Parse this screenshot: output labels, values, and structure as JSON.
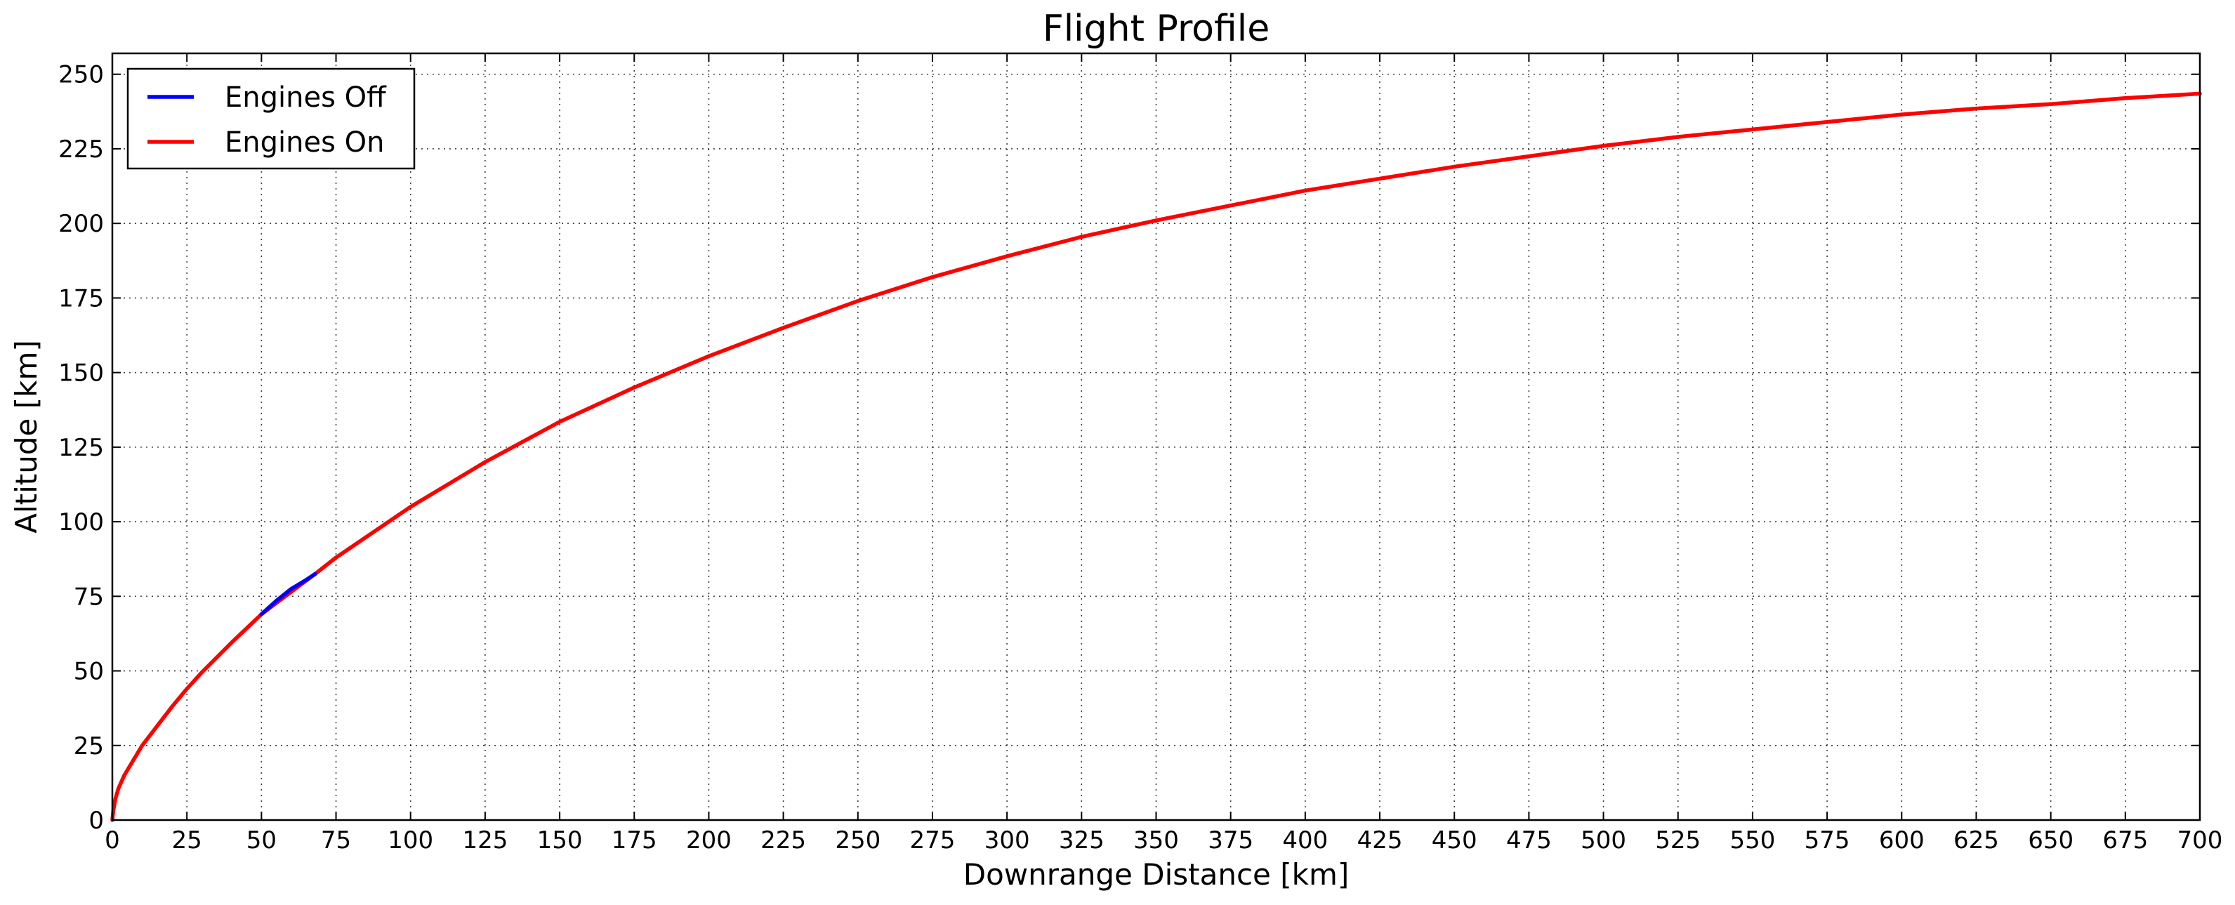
{
  "chart_data": {
    "type": "line",
    "title": "Flight Profile",
    "xlabel": "Downrange Distance [km]",
    "ylabel": "Altitude [km]",
    "xlim": [
      0,
      700
    ],
    "ylim": [
      0,
      257
    ],
    "xticks": [
      0,
      25,
      50,
      75,
      100,
      125,
      150,
      175,
      200,
      225,
      250,
      275,
      300,
      325,
      350,
      375,
      400,
      425,
      450,
      475,
      500,
      525,
      550,
      575,
      600,
      625,
      650,
      675,
      700
    ],
    "yticks": [
      0,
      25,
      50,
      75,
      100,
      125,
      150,
      175,
      200,
      225,
      250
    ],
    "grid": true,
    "legend_position": "top-left",
    "series": [
      {
        "name": "Engines Off",
        "color": "#0000ff",
        "x": [
          50,
          55,
          60,
          65,
          68
        ],
        "y": [
          69,
          73.5,
          77.5,
          80.5,
          82.5
        ]
      },
      {
        "name": "Engines On",
        "color": "#ff0000",
        "x": [
          0,
          0.3,
          1,
          2,
          4,
          7,
          10,
          15,
          20,
          25,
          30,
          40,
          50,
          68,
          75,
          100,
          125,
          150,
          175,
          200,
          225,
          250,
          275,
          300,
          325,
          350,
          375,
          400,
          425,
          450,
          475,
          500,
          525,
          550,
          575,
          600,
          625,
          650,
          675,
          700
        ],
        "y": [
          0,
          3,
          7,
          10.5,
          15,
          20,
          25,
          31.5,
          38,
          44,
          49.5,
          59.5,
          69,
          82.5,
          88,
          105,
          120,
          133.5,
          145,
          155.5,
          165,
          174,
          182,
          189,
          195.5,
          201,
          206,
          211,
          215,
          219,
          222.5,
          226,
          229,
          231.5,
          234,
          236.5,
          238.5,
          240,
          242,
          243.5
        ]
      }
    ]
  }
}
